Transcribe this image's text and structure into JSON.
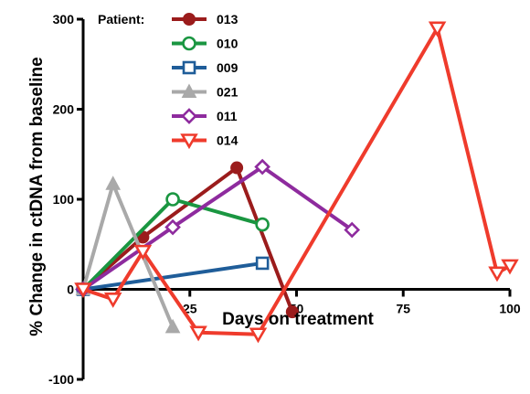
{
  "chart_data": {
    "type": "line",
    "xlabel": "Days on treatment",
    "ylabel": "% Change in ctDNA from baseline",
    "xlim": [
      0,
      100
    ],
    "ylim": [
      -100,
      300
    ],
    "x_ticks": [
      25,
      50,
      75,
      100
    ],
    "y_ticks": [
      -100,
      0,
      100,
      200,
      300
    ],
    "legend_title": "Patient:",
    "legend_position": "top-left",
    "series": [
      {
        "name": "013",
        "color": "#9b1c1c",
        "marker": "filled-circle",
        "points": [
          [
            0,
            0
          ],
          [
            14,
            58
          ],
          [
            36,
            135
          ],
          [
            49,
            -25
          ]
        ]
      },
      {
        "name": "010",
        "color": "#1a9641",
        "marker": "open-circle",
        "points": [
          [
            0,
            0
          ],
          [
            21,
            100
          ],
          [
            42,
            72
          ]
        ]
      },
      {
        "name": "009",
        "color": "#1f5d99",
        "marker": "open-square",
        "points": [
          [
            0,
            0
          ],
          [
            42,
            29
          ]
        ]
      },
      {
        "name": "021",
        "color": "#a9a9a9",
        "marker": "filled-triangle",
        "points": [
          [
            0,
            0
          ],
          [
            7,
            117
          ],
          [
            21,
            -42
          ]
        ]
      },
      {
        "name": "011",
        "color": "#8e2b9e",
        "marker": "open-diamond",
        "points": [
          [
            0,
            0
          ],
          [
            21,
            69
          ],
          [
            42,
            136
          ],
          [
            63,
            66
          ]
        ]
      },
      {
        "name": "014",
        "color": "#ef3b2c",
        "marker": "open-triangle-down",
        "points": [
          [
            0,
            0
          ],
          [
            7,
            -11
          ],
          [
            14,
            42
          ],
          [
            27,
            -48
          ],
          [
            41,
            -50
          ],
          [
            83,
            290
          ],
          [
            97,
            18
          ],
          [
            100,
            26
          ]
        ]
      }
    ]
  }
}
